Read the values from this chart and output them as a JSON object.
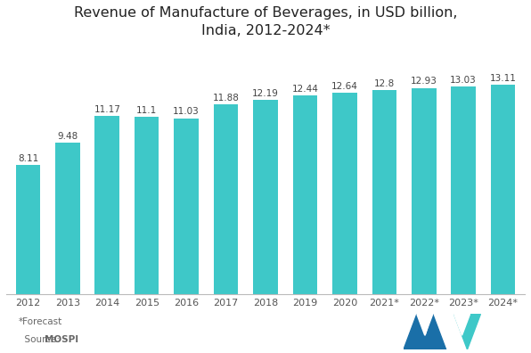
{
  "categories": [
    "2012",
    "2013",
    "2014",
    "2015",
    "2016",
    "2017",
    "2018",
    "2019",
    "2020",
    "2021*",
    "2022*",
    "2023*",
    "2024*"
  ],
  "values": [
    8.11,
    9.48,
    11.17,
    11.1,
    11.03,
    11.88,
    12.19,
    12.44,
    12.64,
    12.8,
    12.93,
    13.03,
    13.11
  ],
  "bar_color": "#3ec8c8",
  "title_line1": "Revenue of Manufacture of Beverages, in USD billion,",
  "title_line2": "India, 2012-2024*",
  "title_fontsize": 11.5,
  "label_fontsize": 7.5,
  "tick_fontsize": 8,
  "background_color": "#ffffff",
  "ylim": [
    0,
    15.5
  ],
  "bar_width": 0.62,
  "logo_color_dark": "#1a6fa8",
  "logo_color_light": "#3ec8c8"
}
